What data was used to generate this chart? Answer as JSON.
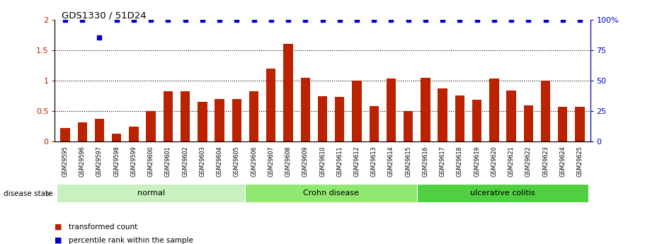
{
  "title": "GDS1330 / 51D24",
  "samples": [
    "GSM29595",
    "GSM29596",
    "GSM29597",
    "GSM29598",
    "GSM29599",
    "GSM29600",
    "GSM29601",
    "GSM29602",
    "GSM29603",
    "GSM29604",
    "GSM29605",
    "GSM29606",
    "GSM29607",
    "GSM29608",
    "GSM29609",
    "GSM29610",
    "GSM29611",
    "GSM29612",
    "GSM29613",
    "GSM29614",
    "GSM29615",
    "GSM29616",
    "GSM29617",
    "GSM29618",
    "GSM29619",
    "GSM29620",
    "GSM29621",
    "GSM29622",
    "GSM29623",
    "GSM29624",
    "GSM29625"
  ],
  "bar_values": [
    0.22,
    0.31,
    0.37,
    0.13,
    0.25,
    0.5,
    0.83,
    0.83,
    0.65,
    0.7,
    0.7,
    0.83,
    1.2,
    1.6,
    1.05,
    0.74,
    0.73,
    1.0,
    0.58,
    1.03,
    0.5,
    1.05,
    0.87,
    0.76,
    0.68,
    1.03,
    0.84,
    0.59,
    1.0,
    0.57,
    0.57
  ],
  "percentile_values": [
    100,
    100,
    85,
    100,
    100,
    100,
    100,
    100,
    100,
    100,
    100,
    100,
    100,
    100,
    100,
    100,
    100,
    100,
    100,
    100,
    100,
    100,
    100,
    100,
    100,
    100,
    100,
    100,
    100,
    100,
    100
  ],
  "groups": [
    {
      "label": "normal",
      "start": 0,
      "end": 11,
      "color": "#c8f0c0"
    },
    {
      "label": "Crohn disease",
      "start": 11,
      "end": 21,
      "color": "#90e870"
    },
    {
      "label": "ulcerative colitis",
      "start": 21,
      "end": 31,
      "color": "#50d040"
    }
  ],
  "bar_color": "#bb2200",
  "dot_color": "#0000cc",
  "ylim_left": [
    0,
    2.0
  ],
  "ylim_right": [
    0,
    100
  ],
  "yticks_left": [
    0,
    0.5,
    1.0,
    1.5,
    2.0
  ],
  "ytick_labels_left": [
    "0",
    "0.5",
    "1",
    "1.5",
    "2"
  ],
  "yticks_right": [
    0,
    25,
    50,
    75,
    100
  ],
  "ytick_labels_right": [
    "0",
    "25",
    "50",
    "75",
    "100%"
  ],
  "hlines": [
    0.5,
    1.0,
    1.5
  ],
  "disease_state_label": "disease state",
  "legend_items": [
    {
      "label": "transformed count",
      "color": "#bb2200"
    },
    {
      "label": "percentile rank within the sample",
      "color": "#0000cc"
    }
  ]
}
